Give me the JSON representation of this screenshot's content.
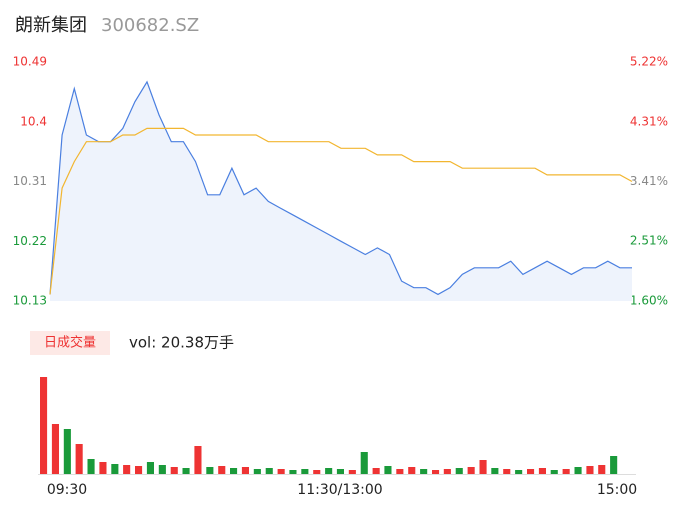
{
  "header": {
    "name": "朗新集团",
    "code": "300682.SZ"
  },
  "chart_data": [
    {
      "type": "line",
      "ylim": [
        10.13,
        10.49
      ],
      "yticks": [
        10.49,
        10.4,
        10.31,
        10.22,
        10.13
      ],
      "ytick_colors": [
        "#e33",
        "#e33",
        "#888",
        "#1a9a3a",
        "#1a9a3a"
      ],
      "y2lim": [
        1.6,
        5.22
      ],
      "y2ticks": [
        {
          "value": 5.22,
          "label": "5.22%"
        },
        {
          "value": 4.31,
          "label": "4.31%"
        },
        {
          "value": 3.41,
          "label": "3.41%"
        },
        {
          "value": 2.51,
          "label": "2.51%"
        },
        {
          "value": 1.6,
          "label": "1.60%"
        }
      ],
      "y2tick_colors": [
        "#e33",
        "#e33",
        "#888",
        "#1a9a3a",
        "#1a9a3a"
      ],
      "series": [
        {
          "color": "#4a7fe0",
          "fill": "#eef3fc",
          "values": [
            10.14,
            10.38,
            10.45,
            10.38,
            10.37,
            10.37,
            10.39,
            10.43,
            10.46,
            10.41,
            10.37,
            10.37,
            10.34,
            10.29,
            10.29,
            10.33,
            10.29,
            10.3,
            10.28,
            10.27,
            10.26,
            10.25,
            10.24,
            10.23,
            10.22,
            10.21,
            10.2,
            10.21,
            10.2,
            10.16,
            10.15,
            10.15,
            10.14,
            10.15,
            10.17,
            10.18,
            10.18,
            10.18,
            10.19,
            10.17,
            10.18,
            10.19,
            10.18,
            10.17,
            10.18,
            10.18,
            10.19,
            10.18,
            10.18
          ]
        },
        {
          "color": "#f2b630",
          "values": [
            10.14,
            10.3,
            10.34,
            10.37,
            10.37,
            10.37,
            10.38,
            10.38,
            10.39,
            10.39,
            10.39,
            10.39,
            10.38,
            10.38,
            10.38,
            10.38,
            10.38,
            10.38,
            10.37,
            10.37,
            10.37,
            10.37,
            10.37,
            10.37,
            10.36,
            10.36,
            10.36,
            10.35,
            10.35,
            10.35,
            10.34,
            10.34,
            10.34,
            10.34,
            10.33,
            10.33,
            10.33,
            10.33,
            10.33,
            10.33,
            10.33,
            10.32,
            10.32,
            10.32,
            10.32,
            10.32,
            10.32,
            10.32,
            10.31
          ]
        }
      ]
    },
    {
      "type": "bar",
      "label": "日成交量",
      "summary": "vol: 20.38万手",
      "x_labels": [
        "09:30",
        "11:30/13:00",
        "15:00"
      ],
      "ylim": [
        0,
        9700
      ],
      "values": [
        9700,
        5000,
        4500,
        3000,
        1500,
        1200,
        1000,
        900,
        800,
        1200,
        900,
        700,
        600,
        2800,
        700,
        800,
        600,
        700,
        500,
        600,
        500,
        400,
        500,
        400,
        600,
        500,
        400,
        2200,
        600,
        800,
        500,
        700,
        500,
        400,
        500,
        600,
        700,
        1400,
        600,
        500,
        400,
        500,
        600,
        400,
        500,
        700,
        800,
        900,
        1800
      ],
      "colors": [
        "#e33",
        "#e33",
        "#1a9a3a",
        "#e33",
        "#1a9a3a",
        "#e33",
        "#1a9a3a",
        "#e33",
        "#e33",
        "#1a9a3a",
        "#1a9a3a",
        "#e33",
        "#1a9a3a",
        "#e33",
        "#1a9a3a",
        "#e33",
        "#1a9a3a",
        "#e33",
        "#1a9a3a",
        "#1a9a3a",
        "#e33",
        "#1a9a3a",
        "#1a9a3a",
        "#e33",
        "#1a9a3a",
        "#1a9a3a",
        "#e33",
        "#1a9a3a",
        "#e33",
        "#1a9a3a",
        "#e33",
        "#e33",
        "#1a9a3a",
        "#e33",
        "#e33",
        "#1a9a3a",
        "#e33",
        "#e33",
        "#1a9a3a",
        "#e33",
        "#1a9a3a",
        "#e33",
        "#e33",
        "#1a9a3a",
        "#e33",
        "#1a9a3a",
        "#e33",
        "#e33",
        "#1a9a3a"
      ]
    }
  ]
}
